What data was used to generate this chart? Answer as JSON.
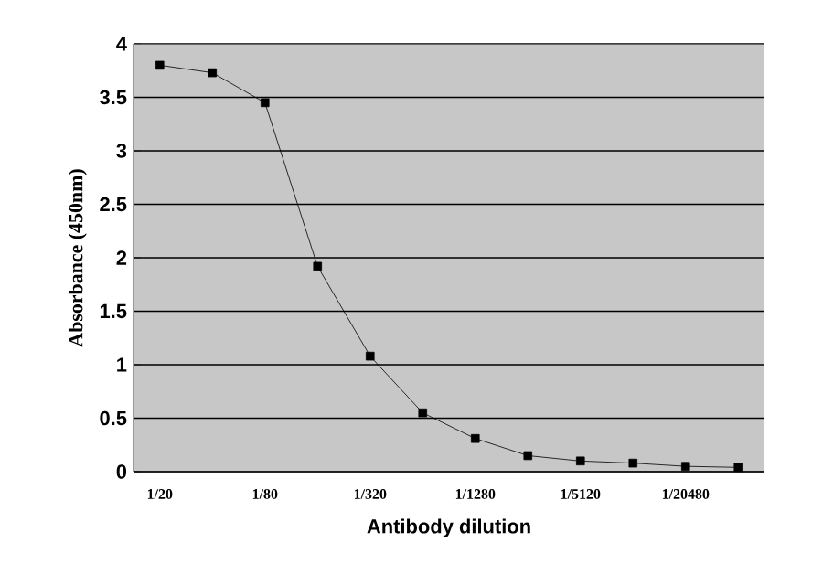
{
  "chart_data": {
    "type": "line",
    "xlabel": "Antibody dilution",
    "ylabel": "Absorbance (450nm)",
    "categories": [
      "1/20",
      null,
      "1/80",
      null,
      "1/320",
      null,
      "1/1280",
      null,
      "1/5120",
      null,
      "1/20480",
      null
    ],
    "series": [
      {
        "color": "#000000",
        "values": [
          3.8,
          3.73,
          3.45,
          1.92,
          1.08,
          0.55,
          0.31,
          0.15,
          0.1,
          0.08,
          0.05,
          0.04
        ]
      }
    ],
    "ylim": [
      0,
      4
    ],
    "yticks": [
      0,
      0.5,
      1,
      1.5,
      2,
      2.5,
      3,
      3.5,
      4
    ],
    "grid": "y",
    "marker": "square",
    "line_style": "solid"
  }
}
